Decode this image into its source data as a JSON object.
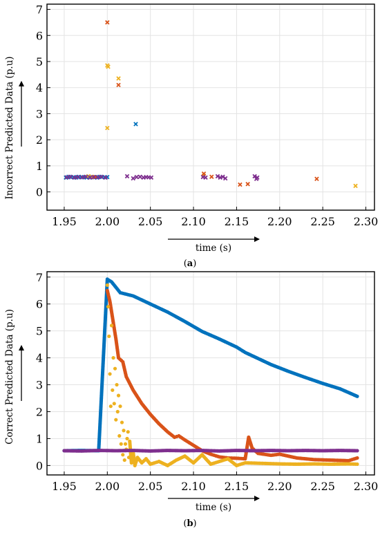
{
  "chart_data": [
    {
      "type": "scatter",
      "marker": "x",
      "caption": "a",
      "ylabel": "Incorrect Predicted Data (p.u)",
      "xlabel": "time (s)",
      "xlim": [
        1.93,
        2.31
      ],
      "ylim": [
        -0.7,
        7.2
      ],
      "xticks": [
        "1.95",
        "2.00",
        "2.05",
        "2.10",
        "2.15",
        "2.20",
        "2.25",
        "2.30"
      ],
      "yticks": [
        "0",
        "1",
        "2",
        "3",
        "4",
        "5",
        "6",
        "7"
      ],
      "grid": true,
      "legend": "none",
      "series": [
        {
          "color": "#0072BD",
          "points": [
            [
              1.952,
              0.55
            ],
            [
              1.955,
              0.58
            ],
            [
              1.958,
              0.56
            ],
            [
              1.961,
              0.57
            ],
            [
              1.964,
              0.55
            ],
            [
              1.967,
              0.58
            ],
            [
              1.97,
              0.56
            ],
            [
              1.973,
              0.57
            ],
            [
              1.976,
              0.55
            ],
            [
              1.979,
              0.58
            ],
            [
              1.982,
              0.56
            ],
            [
              1.985,
              0.57
            ],
            [
              1.988,
              0.55
            ],
            [
              1.991,
              0.58
            ],
            [
              1.994,
              0.57
            ],
            [
              1.997,
              0.56
            ],
            [
              2.0,
              0.57
            ],
            [
              2.033,
              2.6
            ]
          ]
        },
        {
          "color": "#EDB120",
          "points": [
            [
              1.978,
              0.6
            ],
            [
              1.982,
              0.58
            ],
            [
              2.0,
              4.85
            ],
            [
              2.001,
              4.8
            ],
            [
              2.0,
              2.45
            ],
            [
              2.013,
              4.35
            ],
            [
              2.112,
              0.62
            ],
            [
              2.288,
              0.23
            ]
          ]
        },
        {
          "color": "#D95319",
          "points": [
            [
              1.986,
              0.57
            ],
            [
              2.0,
              6.5
            ],
            [
              2.013,
              4.1
            ],
            [
              2.112,
              0.7
            ],
            [
              2.121,
              0.58
            ],
            [
              2.154,
              0.28
            ],
            [
              2.163,
              0.3
            ],
            [
              2.243,
              0.5
            ]
          ]
        },
        {
          "color": "#7E2F8E",
          "points": [
            [
              1.953,
              0.56
            ],
            [
              1.957,
              0.58
            ],
            [
              1.962,
              0.55
            ],
            [
              1.966,
              0.57
            ],
            [
              1.971,
              0.56
            ],
            [
              1.975,
              0.58
            ],
            [
              1.98,
              0.55
            ],
            [
              1.984,
              0.57
            ],
            [
              1.989,
              0.56
            ],
            [
              1.993,
              0.58
            ],
            [
              1.998,
              0.55
            ],
            [
              2.023,
              0.6
            ],
            [
              2.03,
              0.52
            ],
            [
              2.034,
              0.57
            ],
            [
              2.038,
              0.58
            ],
            [
              2.042,
              0.55
            ],
            [
              2.045,
              0.57
            ],
            [
              2.048,
              0.56
            ],
            [
              2.051,
              0.55
            ],
            [
              2.111,
              0.57
            ],
            [
              2.114,
              0.55
            ],
            [
              2.128,
              0.6
            ],
            [
              2.131,
              0.55
            ],
            [
              2.134,
              0.58
            ],
            [
              2.137,
              0.52
            ],
            [
              2.171,
              0.6
            ],
            [
              2.174,
              0.55
            ],
            [
              2.173,
              0.5
            ]
          ]
        }
      ]
    },
    {
      "type": "scatter",
      "marker": "dot",
      "caption": "b",
      "ylabel": "Correct Predicted Data (p.u)",
      "xlabel": "time (s)",
      "xlim": [
        1.93,
        2.31
      ],
      "ylim": [
        -0.35,
        7.2
      ],
      "xticks": [
        "1.95",
        "2.00",
        "2.05",
        "2.10",
        "2.15",
        "2.20",
        "2.25",
        "2.30"
      ],
      "yticks": [
        "0",
        "1",
        "2",
        "3",
        "4",
        "5",
        "6",
        "7"
      ],
      "grid": true,
      "legend": "none",
      "series": [
        {
          "color": "#0072BD",
          "points": [
            [
              1.95,
              0.55
            ],
            [
              1.97,
              0.56
            ],
            [
              1.99,
              0.55
            ],
            [
              2.0,
              6.92
            ],
            [
              2.005,
              6.82
            ],
            [
              2.01,
              6.62
            ],
            [
              2.015,
              6.42
            ],
            [
              2.03,
              6.3
            ],
            [
              2.05,
              6.0
            ],
            [
              2.07,
              5.7
            ],
            [
              2.09,
              5.35
            ],
            [
              2.11,
              4.98
            ],
            [
              2.13,
              4.7
            ],
            [
              2.15,
              4.4
            ],
            [
              2.16,
              4.2
            ],
            [
              2.17,
              4.05
            ],
            [
              2.19,
              3.75
            ],
            [
              2.21,
              3.5
            ],
            [
              2.23,
              3.27
            ],
            [
              2.25,
              3.05
            ],
            [
              2.27,
              2.85
            ],
            [
              2.29,
              2.57
            ]
          ]
        },
        {
          "color": "#D95319",
          "points": [
            [
              2.0,
              6.5
            ],
            [
              2.003,
              6.1
            ],
            [
              2.007,
              5.3
            ],
            [
              2.01,
              4.7
            ],
            [
              2.013,
              4.0
            ],
            [
              2.018,
              3.85
            ],
            [
              2.022,
              3.3
            ],
            [
              2.03,
              2.8
            ],
            [
              2.04,
              2.3
            ],
            [
              2.05,
              1.9
            ],
            [
              2.06,
              1.55
            ],
            [
              2.07,
              1.25
            ],
            [
              2.078,
              1.05
            ],
            [
              2.083,
              1.1
            ],
            [
              2.09,
              0.95
            ],
            [
              2.1,
              0.75
            ],
            [
              2.11,
              0.55
            ],
            [
              2.12,
              0.42
            ],
            [
              2.13,
              0.32
            ],
            [
              2.14,
              0.28
            ],
            [
              2.15,
              0.27
            ],
            [
              2.16,
              0.25
            ],
            [
              2.164,
              1.05
            ],
            [
              2.168,
              0.65
            ],
            [
              2.175,
              0.45
            ],
            [
              2.19,
              0.38
            ],
            [
              2.2,
              0.42
            ],
            [
              2.22,
              0.28
            ],
            [
              2.24,
              0.22
            ],
            [
              2.26,
              0.2
            ],
            [
              2.28,
              0.18
            ],
            [
              2.29,
              0.28
            ]
          ]
        },
        {
          "color": "#EDB120",
          "points": [
            [
              2.0,
              6.7
            ],
            [
              2.001,
              5.9
            ],
            [
              2.002,
              4.8
            ],
            [
              2.003,
              3.4
            ],
            [
              2.004,
              2.2
            ],
            [
              2.005,
              5.2
            ],
            [
              2.006,
              2.8
            ],
            [
              2.007,
              4.0
            ],
            [
              2.008,
              2.3
            ],
            [
              2.009,
              3.6
            ],
            [
              2.01,
              1.7
            ],
            [
              2.011,
              3.0
            ],
            [
              2.012,
              2.0
            ],
            [
              2.013,
              2.6
            ],
            [
              2.014,
              1.1
            ],
            [
              2.015,
              2.2
            ],
            [
              2.016,
              0.8
            ],
            [
              2.017,
              1.6
            ],
            [
              2.018,
              0.4
            ],
            [
              2.019,
              1.3
            ],
            [
              2.02,
              0.2
            ],
            [
              2.021,
              0.8
            ],
            [
              2.022,
              0.6
            ],
            [
              2.023,
              1.0
            ],
            [
              2.024,
              1.25
            ],
            [
              2.025,
              0.3
            ],
            [
              2.026,
              0.9
            ],
            [
              2.028,
              0.1
            ],
            [
              2.03,
              0.5
            ],
            [
              2.032,
              0.0
            ],
            [
              2.035,
              0.3
            ],
            [
              2.04,
              0.1
            ],
            [
              2.045,
              0.25
            ],
            [
              2.05,
              0.05
            ],
            [
              2.06,
              0.15
            ],
            [
              2.07,
              0.0
            ],
            [
              2.08,
              0.2
            ],
            [
              2.09,
              0.35
            ],
            [
              2.1,
              0.1
            ],
            [
              2.11,
              0.4
            ],
            [
              2.12,
              0.05
            ],
            [
              2.13,
              0.15
            ],
            [
              2.14,
              0.25
            ],
            [
              2.15,
              0.0
            ],
            [
              2.16,
              0.1
            ],
            [
              2.18,
              0.08
            ],
            [
              2.2,
              0.06
            ],
            [
              2.22,
              0.05
            ],
            [
              2.24,
              0.06
            ],
            [
              2.26,
              0.05
            ],
            [
              2.28,
              0.06
            ],
            [
              2.29,
              0.05
            ]
          ]
        },
        {
          "color": "#7E2F8E",
          "points": [
            [
              1.95,
              0.55
            ],
            [
              1.97,
              0.54
            ],
            [
              1.99,
              0.56
            ],
            [
              2.01,
              0.55
            ],
            [
              2.03,
              0.56
            ],
            [
              2.05,
              0.54
            ],
            [
              2.07,
              0.56
            ],
            [
              2.09,
              0.55
            ],
            [
              2.11,
              0.56
            ],
            [
              2.13,
              0.54
            ],
            [
              2.15,
              0.56
            ],
            [
              2.17,
              0.55
            ],
            [
              2.19,
              0.56
            ],
            [
              2.21,
              0.55
            ],
            [
              2.23,
              0.56
            ],
            [
              2.25,
              0.55
            ],
            [
              2.27,
              0.56
            ],
            [
              2.29,
              0.55
            ]
          ]
        }
      ]
    }
  ]
}
